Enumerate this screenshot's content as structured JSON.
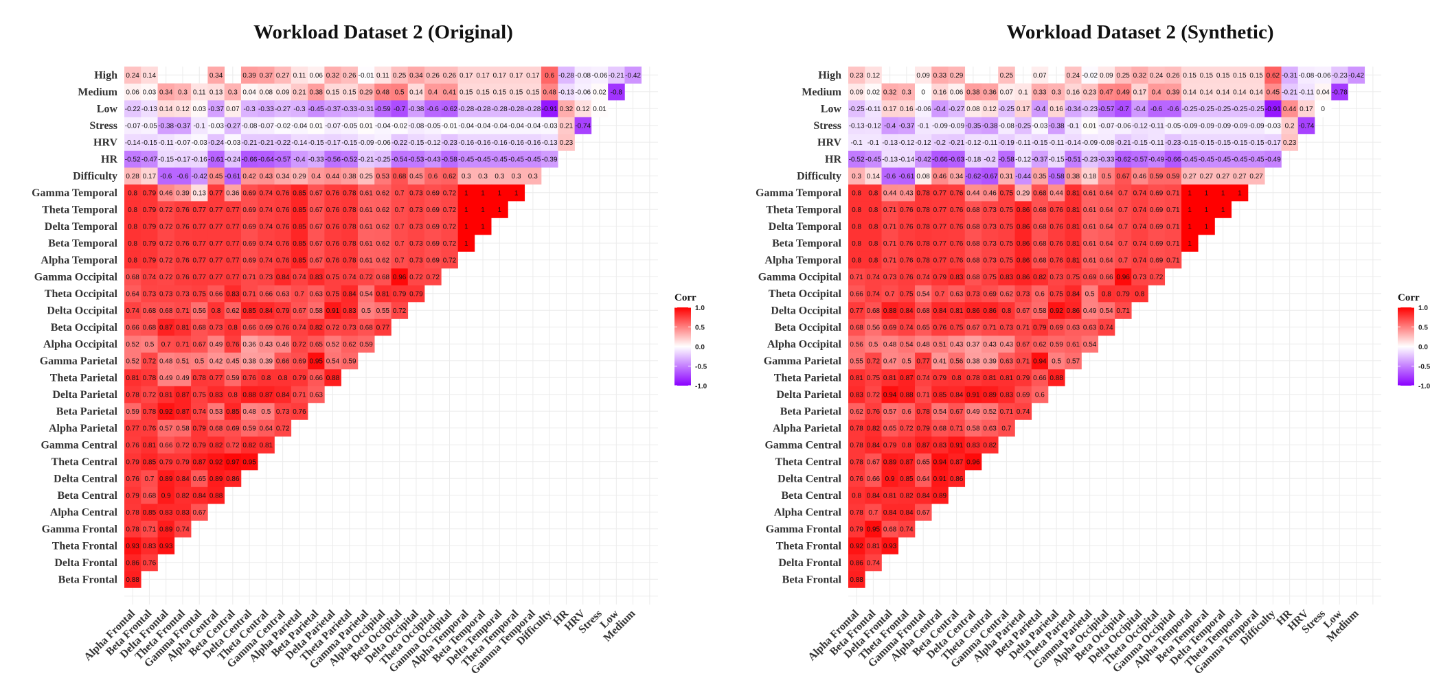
{
  "chart_data": [
    {
      "type": "heatmap",
      "title": "Workload Dataset 2 (Original)",
      "variables": [
        "Alpha Frontal",
        "Beta Frontal",
        "Delta Frontal",
        "Theta Frontal",
        "Gamma Frontal",
        "Alpha Central",
        "Beta Central",
        "Delta Central",
        "Theta Central",
        "Gamma Central",
        "Alpha Parietal",
        "Beta Parietal",
        "Delta Parietal",
        "Theta Parietal",
        "Gamma Parietal",
        "Alpha Occipital",
        "Beta Occipital",
        "Delta Occipital",
        "Theta Occipital",
        "Gamma Occipital",
        "Alpha Temporal",
        "Beta Temporal",
        "Delta Temporal",
        "Theta Temporal",
        "Gamma Temporal",
        "Difficulty",
        "HR",
        "HRV",
        "Stress",
        "Low",
        "Medium",
        "High"
      ],
      "triangle": "upper (i < j); rows = x-variable index, values listed for each later variable",
      "rows": [
        [
          0.88,
          0.86,
          0.93,
          0.78,
          0.78,
          0.79,
          0.76,
          0.79,
          0.76,
          0.77,
          0.59,
          0.78,
          0.81,
          0.52,
          0.52,
          0.66,
          0.74,
          0.64,
          0.68,
          0.8,
          0.8,
          0.8,
          0.8,
          0.8,
          0.28,
          -0.52,
          -0.14,
          -0.07,
          -0.22,
          0.06,
          0.24
        ],
        [
          0.76,
          0.83,
          0.71,
          0.85,
          0.68,
          0.7,
          0.85,
          0.81,
          0.76,
          0.78,
          0.72,
          0.78,
          0.72,
          0.5,
          0.68,
          0.68,
          0.73,
          0.74,
          0.79,
          0.79,
          0.79,
          0.79,
          0.79,
          0.17,
          -0.47,
          -0.15,
          -0.05,
          -0.13,
          0.03,
          0.14
        ],
        [
          0.93,
          0.89,
          0.83,
          0.9,
          0.89,
          0.79,
          0.66,
          0.57,
          0.92,
          0.81,
          0.49,
          0.48,
          0.7,
          0.87,
          0.68,
          0.73,
          0.72,
          0.72,
          0.72,
          0.72,
          0.72,
          0.46,
          -0.6,
          -0.15,
          -0.11,
          -0.38,
          0.14,
          0.34
        ],
        [
          0.74,
          0.83,
          0.82,
          0.84,
          0.79,
          0.72,
          0.58,
          0.87,
          0.87,
          0.49,
          0.51,
          0.71,
          0.81,
          0.71,
          0.73,
          0.76,
          0.76,
          0.76,
          0.76,
          0.76,
          0.39,
          -0.6,
          -0.17,
          -0.07,
          -0.37,
          0.12,
          0.3
        ],
        [
          0.67,
          0.84,
          0.65,
          0.87,
          0.79,
          0.79,
          0.74,
          0.75,
          0.78,
          0.5,
          0.67,
          0.68,
          0.56,
          0.75,
          0.77,
          0.77,
          0.77,
          0.77,
          0.77,
          0.13,
          -0.42,
          -0.16,
          -0.03,
          -0.1,
          0.03,
          0.11
        ],
        [
          0.88,
          0.89,
          0.92,
          0.82,
          0.68,
          0.53,
          0.83,
          0.77,
          0.42,
          0.49,
          0.73,
          0.8,
          0.66,
          0.77,
          0.77,
          0.77,
          0.77,
          0.77,
          0.77,
          0.45,
          -0.61,
          -0.24,
          -0.03,
          -0.37,
          0.13,
          0.34
        ],
        [
          0.86,
          0.97,
          0.72,
          0.69,
          0.85,
          0.8,
          0.59,
          0.45,
          0.76,
          0.8,
          0.62,
          0.83,
          0.77,
          0.77,
          0.77,
          0.77,
          0.77,
          0.36,
          -0.61,
          -0.24,
          -0.03,
          -0.27,
          0.07,
          0.3
        ],
        [
          0.95,
          0.82,
          0.59,
          0.48,
          0.88,
          0.76,
          0.38,
          0.36,
          0.66,
          0.85,
          0.71,
          0.71,
          0.69,
          0.69,
          0.69,
          0.69,
          0.69,
          0.42,
          -0.66,
          -0.21,
          -0.08,
          -0.3,
          0.04,
          0.39
        ],
        [
          0.81,
          0.64,
          0.5,
          0.87,
          0.8,
          0.39,
          0.43,
          0.69,
          0.84,
          0.66,
          0.73,
          0.74,
          0.74,
          0.74,
          0.74,
          0.74,
          0.43,
          -0.64,
          -0.21,
          -0.07,
          -0.33,
          0.08,
          0.37
        ],
        [
          0.72,
          0.73,
          0.84,
          0.8,
          0.66,
          0.46,
          0.76,
          0.79,
          0.63,
          0.84,
          0.76,
          0.76,
          0.76,
          0.76,
          0.76,
          0.34,
          -0.57,
          -0.22,
          -0.02,
          -0.27,
          0.09,
          0.27
        ],
        [
          0.76,
          0.71,
          0.79,
          0.69,
          0.72,
          0.74,
          0.67,
          0.7,
          0.74,
          0.85,
          0.85,
          0.85,
          0.85,
          0.85,
          0.29,
          -0.4,
          -0.14,
          -0.04,
          -0.3,
          0.21,
          0.11
        ],
        [
          0.63,
          0.66,
          0.95,
          0.65,
          0.82,
          0.58,
          0.63,
          0.83,
          0.67,
          0.67,
          0.67,
          0.67,
          0.67,
          0.4,
          -0.33,
          -0.15,
          0.01,
          -0.45,
          0.38,
          0.06
        ],
        [
          0.88,
          0.54,
          0.52,
          0.72,
          0.91,
          0.75,
          0.75,
          0.76,
          0.76,
          0.76,
          0.76,
          0.76,
          0.44,
          -0.56,
          -0.17,
          -0.07,
          -0.37,
          0.15,
          0.32
        ],
        [
          0.59,
          0.62,
          0.73,
          0.83,
          0.84,
          0.74,
          0.78,
          0.78,
          0.78,
          0.78,
          0.78,
          0.38,
          -0.52,
          -0.15,
          -0.05,
          -0.33,
          0.15,
          0.26
        ],
        [
          0.59,
          0.68,
          0.5,
          0.54,
          0.72,
          0.61,
          0.61,
          0.61,
          0.61,
          0.61,
          0.25,
          -0.21,
          -0.09,
          0.01,
          -0.31,
          0.29,
          -0.01
        ],
        [
          0.77,
          0.55,
          0.81,
          0.68,
          0.62,
          0.62,
          0.62,
          0.62,
          0.62,
          0.53,
          -0.25,
          -0.06,
          -0.04,
          -0.59,
          0.48,
          0.11
        ],
        [
          0.72,
          0.79,
          0.96,
          0.7,
          0.7,
          0.7,
          0.7,
          0.7,
          0.68,
          -0.54,
          -0.22,
          -0.02,
          -0.7,
          0.5,
          0.25
        ],
        [
          0.79,
          0.72,
          0.73,
          0.73,
          0.73,
          0.73,
          0.73,
          0.45,
          -0.53,
          -0.15,
          -0.08,
          -0.38,
          0.14,
          0.34
        ],
        [
          0.72,
          0.69,
          0.69,
          0.69,
          0.69,
          0.69,
          0.6,
          -0.43,
          -0.12,
          -0.05,
          -0.6,
          0.4,
          0.26
        ],
        [
          0.72,
          0.72,
          0.72,
          0.72,
          0.72,
          0.62,
          -0.58,
          -0.23,
          -0.01,
          -0.62,
          0.41,
          0.26
        ],
        [
          1,
          1,
          1,
          1,
          0.3,
          -0.45,
          -0.16,
          -0.04,
          -0.28,
          0.15,
          0.17
        ],
        [
          1,
          1,
          1,
          0.3,
          -0.45,
          -0.16,
          -0.04,
          -0.28,
          0.15,
          0.17
        ],
        [
          1,
          1,
          0.3,
          -0.45,
          -0.16,
          -0.04,
          -0.28,
          0.15,
          0.17
        ],
        [
          1,
          0.3,
          -0.45,
          -0.16,
          -0.04,
          -0.28,
          0.15,
          0.17
        ],
        [
          0.3,
          -0.45,
          -0.16,
          -0.04,
          -0.28,
          0.15,
          0.17
        ],
        [
          -0.39,
          -0.13,
          -0.03,
          -0.91,
          0.48,
          0.6
        ],
        [
          0.23,
          0.21,
          0.32,
          -0.13,
          -0.28
        ],
        [
          -0.74,
          0.12,
          -0.06,
          -0.08
        ],
        [
          0.01,
          0.02,
          -0.06
        ],
        [
          -0.8,
          -0.21
        ],
        [
          -0.42
        ]
      ],
      "legend": {
        "title": "Corr",
        "ticks": [
          "1.0",
          "0.5",
          "0.0",
          "-0.5",
          "-1.0"
        ],
        "placement": "right"
      }
    },
    {
      "type": "heatmap",
      "title": "Workload Dataset 2 (Synthetic)",
      "variables": [
        "Alpha Frontal",
        "Beta Frontal",
        "Delta Frontal",
        "Theta Frontal",
        "Gamma Frontal",
        "Alpha Central",
        "Beta Central",
        "Delta Central",
        "Theta Central",
        "Gamma Central",
        "Alpha Parietal",
        "Beta Parietal",
        "Delta Parietal",
        "Theta Parietal",
        "Gamma Parietal",
        "Alpha Occipital",
        "Beta Occipital",
        "Delta Occipital",
        "Theta Occipital",
        "Gamma Occipital",
        "Alpha Temporal",
        "Beta Temporal",
        "Delta Temporal",
        "Theta Temporal",
        "Gamma Temporal",
        "Difficulty",
        "HR",
        "HRV",
        "Stress",
        "Low",
        "Medium",
        "High"
      ],
      "triangle": "upper (i < j); rows = x-variable index, values listed for each later variable",
      "rows": [
        [
          0.88,
          0.86,
          0.92,
          0.79,
          0.78,
          0.8,
          0.76,
          0.78,
          0.78,
          0.78,
          0.62,
          0.83,
          0.81,
          0.55,
          0.56,
          0.68,
          0.77,
          0.66,
          0.71,
          0.8,
          0.8,
          0.8,
          0.8,
          0.8,
          0.3,
          -0.52,
          -0.1,
          -0.13,
          -0.25,
          0.09,
          0.23
        ],
        [
          0.74,
          0.81,
          0.95,
          0.7,
          0.84,
          0.66,
          0.67,
          0.84,
          0.82,
          0.76,
          0.72,
          0.75,
          0.72,
          0.5,
          0.56,
          0.68,
          0.74,
          0.74,
          0.8,
          0.8,
          0.8,
          0.8,
          0.8,
          0.14,
          -0.45,
          -0.1,
          -0.12,
          -0.11,
          0.02,
          0.12
        ],
        [
          0.93,
          0.68,
          0.84,
          0.81,
          0.9,
          0.89,
          0.79,
          0.65,
          0.57,
          0.94,
          0.81,
          0.47,
          0.48,
          0.69,
          0.88,
          0.7,
          0.73,
          0.71,
          0.71,
          0.71,
          0.71,
          0.44,
          -0.6,
          -0.13,
          -0.13,
          -0.4,
          0.17,
          0.32
        ],
        [
          0.74,
          0.84,
          0.82,
          0.85,
          0.87,
          0.8,
          0.72,
          0.6,
          0.88,
          0.87,
          0.5,
          0.54,
          0.74,
          0.84,
          0.75,
          0.76,
          0.76,
          0.76,
          0.76,
          0.76,
          0.43,
          -0.61,
          -0.14,
          -0.12,
          -0.37,
          0.16,
          0.3
        ],
        [
          0.67,
          0.84,
          0.64,
          0.65,
          0.87,
          0.79,
          0.78,
          0.71,
          0.74,
          0.77,
          0.48,
          0.65,
          0.68,
          0.54,
          0.74,
          0.78,
          0.78,
          0.78,
          0.78,
          0.78,
          0.08,
          -0.42,
          -0.12,
          -0.1,
          -0.06,
          0,
          0.09
        ],
        [
          0.89,
          0.91,
          0.94,
          0.83,
          0.68,
          0.54,
          0.85,
          0.79,
          0.41,
          0.51,
          0.76,
          0.84,
          0.7,
          0.79,
          0.77,
          0.77,
          0.77,
          0.77,
          0.77,
          0.46,
          -0.66,
          -0.2,
          -0.09,
          -0.4,
          0.16,
          0.33
        ],
        [
          0.86,
          0.87,
          0.91,
          0.71,
          0.67,
          0.84,
          0.8,
          0.56,
          0.43,
          0.75,
          0.81,
          0.63,
          0.83,
          0.76,
          0.76,
          0.76,
          0.76,
          0.76,
          0.34,
          -0.63,
          -0.21,
          -0.09,
          -0.27,
          0.06,
          0.29
        ],
        [
          0.96,
          0.83,
          0.58,
          0.49,
          0.91,
          0.78,
          0.38,
          0.37,
          0.67,
          0.86,
          0.73,
          0.68,
          0.68,
          0.68,
          0.68,
          0.68,
          0.44,
          -0.62,
          -0.18,
          -0.12,
          -0.35,
          0.08,
          0.38
        ],
        [
          0.82,
          0.63,
          0.52,
          0.89,
          0.81,
          0.39,
          0.43,
          0.71,
          0.86,
          0.69,
          0.75,
          0.73,
          0.73,
          0.73,
          0.73,
          0.46,
          -0.67,
          -0.2,
          -0.11,
          -0.38,
          0.12,
          0.36
        ],
        [
          0.7,
          0.71,
          0.83,
          0.81,
          0.63,
          0.43,
          0.73,
          0.8,
          0.62,
          0.83,
          0.75,
          0.75,
          0.75,
          0.75,
          0.75,
          0.31,
          -0.58,
          -0.19,
          -0.08,
          -0.25,
          0.07,
          0.25
        ],
        [
          0.74,
          0.69,
          0.79,
          0.71,
          0.67,
          0.71,
          0.67,
          0.73,
          0.86,
          0.86,
          0.86,
          0.86,
          0.86,
          0.29,
          -0.44,
          -0.12,
          -0.11,
          -0.25,
          0.17,
          0.1
        ],
        [
          0.6,
          0.66,
          0.94,
          0.62,
          0.79,
          0.58,
          0.6,
          0.82,
          0.68,
          0.68,
          0.68,
          0.68,
          0.68,
          0.35,
          -0.37,
          -0.15,
          -0.03,
          -0.4,
          0.33,
          0.07
        ],
        [
          0.88,
          0.5,
          0.59,
          0.69,
          0.92,
          0.75,
          0.73,
          0.76,
          0.76,
          0.76,
          0.76,
          0.44,
          -0.58,
          -0.15,
          -0.11,
          -0.38,
          0.16,
          0.3
        ],
        [
          0.57,
          0.61,
          0.63,
          0.86,
          0.84,
          0.75,
          0.81,
          0.81,
          0.81,
          0.81,
          0.81,
          0.38,
          -0.51,
          -0.14,
          -0.1,
          -0.34,
          0.16,
          0.24
        ],
        [
          0.54,
          0.63,
          0.49,
          0.5,
          0.69,
          0.61,
          0.61,
          0.61,
          0.61,
          0.61,
          0.18,
          -0.23,
          -0.09,
          0.01,
          -0.23,
          0.23,
          -0.02
        ],
        [
          0.74,
          0.54,
          0.8,
          0.66,
          0.64,
          0.64,
          0.64,
          0.64,
          0.64,
          0.5,
          -0.33,
          -0.08,
          -0.07,
          -0.57,
          0.47,
          0.09
        ],
        [
          0.71,
          0.79,
          0.96,
          0.7,
          0.7,
          0.7,
          0.7,
          0.7,
          0.67,
          -0.62,
          -0.21,
          -0.06,
          -0.7,
          0.49,
          0.25
        ],
        [
          0.8,
          0.73,
          0.74,
          0.74,
          0.74,
          0.74,
          0.74,
          0.46,
          -0.57,
          -0.15,
          -0.12,
          -0.4,
          0.17,
          0.32
        ],
        [
          0.72,
          0.69,
          0.69,
          0.69,
          0.69,
          0.69,
          0.59,
          -0.49,
          -0.11,
          -0.11,
          -0.6,
          0.4,
          0.24
        ],
        [
          0.71,
          0.71,
          0.71,
          0.71,
          0.71,
          0.59,
          -0.66,
          -0.23,
          -0.05,
          -0.6,
          0.39,
          0.26
        ],
        [
          1,
          1,
          1,
          1,
          0.27,
          -0.45,
          -0.15,
          -0.09,
          -0.25,
          0.14,
          0.15
        ],
        [
          1,
          1,
          1,
          0.27,
          -0.45,
          -0.15,
          -0.09,
          -0.25,
          0.14,
          0.15
        ],
        [
          1,
          1,
          0.27,
          -0.45,
          -0.15,
          -0.09,
          -0.25,
          0.14,
          0.15
        ],
        [
          1,
          0.27,
          -0.45,
          -0.15,
          -0.09,
          -0.25,
          0.14,
          0.15
        ],
        [
          0.27,
          -0.45,
          -0.15,
          -0.09,
          -0.25,
          0.14,
          0.15
        ],
        [
          -0.49,
          -0.17,
          -0.03,
          -0.91,
          0.45,
          0.62
        ],
        [
          0.23,
          0.2,
          0.44,
          -0.21,
          -0.31
        ],
        [
          -0.74,
          0.17,
          -0.11,
          -0.08
        ],
        [
          0,
          0.04,
          -0.06
        ],
        [
          -0.78,
          -0.23
        ],
        [
          -0.42
        ]
      ],
      "legend": {
        "title": "Corr",
        "ticks": [
          "1.0",
          "0.5",
          "0.0",
          "-0.5",
          "-1.0"
        ],
        "placement": "right"
      }
    }
  ],
  "colors": {
    "positive": "#ff0000",
    "neutral": "#ffffff",
    "negative": "#8a00ff",
    "grid": "#ebebeb"
  }
}
